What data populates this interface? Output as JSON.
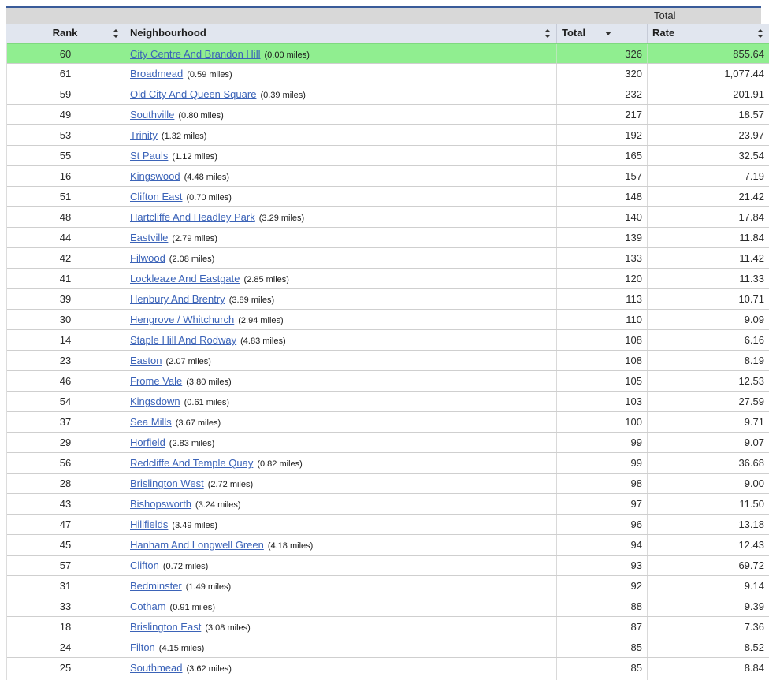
{
  "colors": {
    "accent_line": "#3a5b99",
    "group_band_bg": "#d8d8d8",
    "header_bg": "#e1e6ef",
    "highlight_green": "#90ee90",
    "link_blue": "#3b63b8"
  },
  "table": {
    "group_header": {
      "label": "Total"
    },
    "columns": [
      {
        "key": "rank",
        "label": "Rank",
        "sort_state": "unsorted"
      },
      {
        "key": "nbh",
        "label": "Neighbourhood",
        "sort_state": "unsorted"
      },
      {
        "key": "total",
        "label": "Total",
        "sort_state": "descending"
      },
      {
        "key": "rate",
        "label": "Rate",
        "sort_state": "unsorted"
      }
    ],
    "rows": [
      {
        "rank": "60",
        "name": "City Centre And Brandon Hill",
        "distance": "(0.00 miles)",
        "total": "326",
        "rate": "855.64",
        "highlighted": true
      },
      {
        "rank": "61",
        "name": "Broadmead",
        "distance": "(0.59 miles)",
        "total": "320",
        "rate": "1,077.44",
        "highlighted": false
      },
      {
        "rank": "59",
        "name": "Old City And Queen Square",
        "distance": "(0.39 miles)",
        "total": "232",
        "rate": "201.91",
        "highlighted": false
      },
      {
        "rank": "49",
        "name": "Southville",
        "distance": "(0.80 miles)",
        "total": "217",
        "rate": "18.57",
        "highlighted": false
      },
      {
        "rank": "53",
        "name": "Trinity",
        "distance": "(1.32 miles)",
        "total": "192",
        "rate": "23.97",
        "highlighted": false
      },
      {
        "rank": "55",
        "name": "St Pauls",
        "distance": "(1.12 miles)",
        "total": "165",
        "rate": "32.54",
        "highlighted": false
      },
      {
        "rank": "16",
        "name": "Kingswood",
        "distance": "(4.48 miles)",
        "total": "157",
        "rate": "7.19",
        "highlighted": false
      },
      {
        "rank": "51",
        "name": "Clifton East",
        "distance": "(0.70 miles)",
        "total": "148",
        "rate": "21.42",
        "highlighted": false
      },
      {
        "rank": "48",
        "name": "Hartcliffe And Headley Park",
        "distance": "(3.29 miles)",
        "total": "140",
        "rate": "17.84",
        "highlighted": false
      },
      {
        "rank": "44",
        "name": "Eastville",
        "distance": "(2.79 miles)",
        "total": "139",
        "rate": "11.84",
        "highlighted": false
      },
      {
        "rank": "42",
        "name": "Filwood",
        "distance": "(2.08 miles)",
        "total": "133",
        "rate": "11.42",
        "highlighted": false
      },
      {
        "rank": "41",
        "name": "Lockleaze And Eastgate",
        "distance": "(2.85 miles)",
        "total": "120",
        "rate": "11.33",
        "highlighted": false
      },
      {
        "rank": "39",
        "name": "Henbury And Brentry",
        "distance": "(3.89 miles)",
        "total": "113",
        "rate": "10.71",
        "highlighted": false
      },
      {
        "rank": "30",
        "name": "Hengrove / Whitchurch",
        "distance": "(2.94 miles)",
        "total": "110",
        "rate": "9.09",
        "highlighted": false
      },
      {
        "rank": "14",
        "name": "Staple Hill And Rodway",
        "distance": "(4.83 miles)",
        "total": "108",
        "rate": "6.16",
        "highlighted": false
      },
      {
        "rank": "23",
        "name": "Easton",
        "distance": "(2.07 miles)",
        "total": "108",
        "rate": "8.19",
        "highlighted": false
      },
      {
        "rank": "46",
        "name": "Frome Vale",
        "distance": "(3.80 miles)",
        "total": "105",
        "rate": "12.53",
        "highlighted": false
      },
      {
        "rank": "54",
        "name": "Kingsdown",
        "distance": "(0.61 miles)",
        "total": "103",
        "rate": "27.59",
        "highlighted": false
      },
      {
        "rank": "37",
        "name": "Sea Mills",
        "distance": "(3.67 miles)",
        "total": "100",
        "rate": "9.71",
        "highlighted": false
      },
      {
        "rank": "29",
        "name": "Horfield",
        "distance": "(2.83 miles)",
        "total": "99",
        "rate": "9.07",
        "highlighted": false
      },
      {
        "rank": "56",
        "name": "Redcliffe And Temple Quay",
        "distance": "(0.82 miles)",
        "total": "99",
        "rate": "36.68",
        "highlighted": false
      },
      {
        "rank": "28",
        "name": "Brislington West",
        "distance": "(2.72 miles)",
        "total": "98",
        "rate": "9.00",
        "highlighted": false
      },
      {
        "rank": "43",
        "name": "Bishopsworth",
        "distance": "(3.24 miles)",
        "total": "97",
        "rate": "11.50",
        "highlighted": false
      },
      {
        "rank": "47",
        "name": "Hillfields",
        "distance": "(3.49 miles)",
        "total": "96",
        "rate": "13.18",
        "highlighted": false
      },
      {
        "rank": "45",
        "name": "Hanham And Longwell Green",
        "distance": "(4.18 miles)",
        "total": "94",
        "rate": "12.43",
        "highlighted": false
      },
      {
        "rank": "57",
        "name": "Clifton",
        "distance": "(0.72 miles)",
        "total": "93",
        "rate": "69.72",
        "highlighted": false
      },
      {
        "rank": "31",
        "name": "Bedminster",
        "distance": "(1.49 miles)",
        "total": "92",
        "rate": "9.14",
        "highlighted": false
      },
      {
        "rank": "33",
        "name": "Cotham",
        "distance": "(0.91 miles)",
        "total": "88",
        "rate": "9.39",
        "highlighted": false
      },
      {
        "rank": "18",
        "name": "Brislington East",
        "distance": "(3.08 miles)",
        "total": "87",
        "rate": "7.36",
        "highlighted": false
      },
      {
        "rank": "24",
        "name": "Filton",
        "distance": "(4.15 miles)",
        "total": "85",
        "rate": "8.52",
        "highlighted": false
      },
      {
        "rank": "25",
        "name": "Southmead",
        "distance": "(3.62 miles)",
        "total": "85",
        "rate": "8.84",
        "highlighted": false
      }
    ]
  }
}
